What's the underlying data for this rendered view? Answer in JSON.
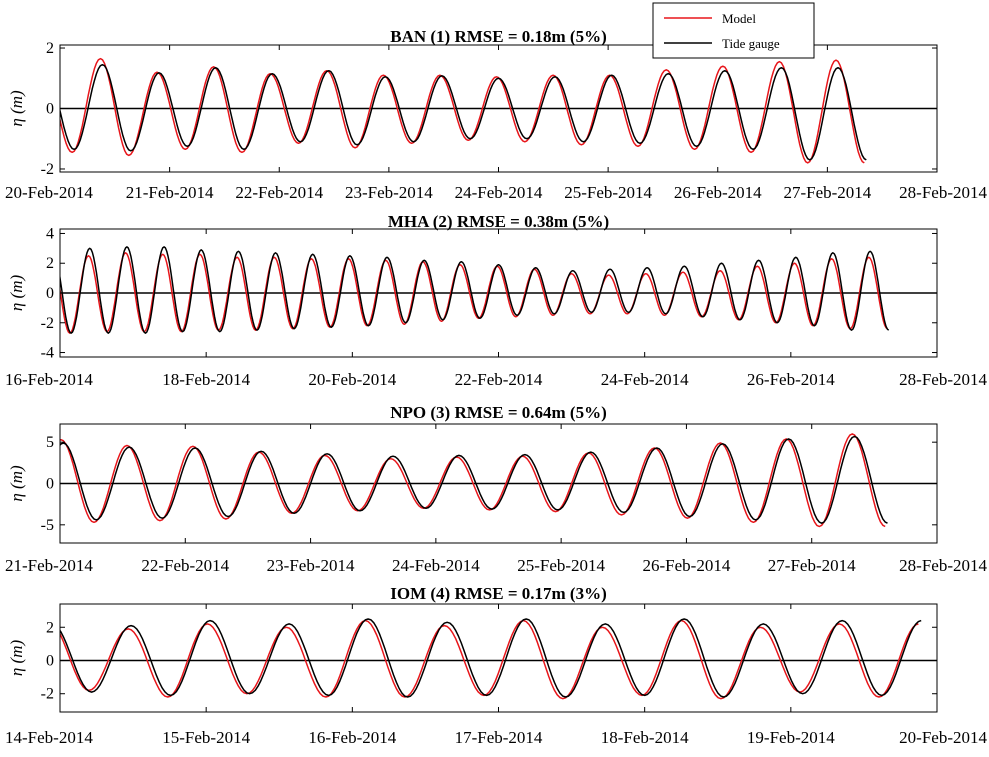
{
  "legend": {
    "position": "top-right",
    "entries": [
      {
        "label": "Model",
        "color": "#e8161b"
      },
      {
        "label": "Tide gauge",
        "color": "#000000"
      }
    ]
  },
  "chart_data": [
    {
      "type": "line",
      "title": "BAN (1) RMSE = 0.18m (5%)",
      "ylabel": "η (m)",
      "ylim": [
        -2.1,
        2.1
      ],
      "yticks": [
        -2,
        0,
        2
      ],
      "x_start": "20-Feb-2014",
      "x_end": "28-Feb-2014",
      "xticks": [
        "20-Feb-2014",
        "21-Feb-2014",
        "22-Feb-2014",
        "23-Feb-2014",
        "24-Feb-2014",
        "25-Feb-2014",
        "26-Feb-2014",
        "27-Feb-2014",
        "28-Feb-2014"
      ],
      "zero_line": true,
      "series": [
        {
          "name": "Model",
          "color": "#e8161b",
          "highs": [
            1.3,
            1.65,
            1.2,
            1.38,
            1.15,
            1.25,
            1.1,
            1.1,
            1.05,
            1.1,
            1.1,
            1.28,
            1.4,
            1.55,
            1.6
          ],
          "lows": [
            -1.45,
            -1.55,
            -1.35,
            -1.45,
            -1.15,
            -1.3,
            -1.15,
            -1.05,
            -1.1,
            -1.2,
            -1.25,
            -1.35,
            -1.45,
            -1.8
          ]
        },
        {
          "name": "Tide gauge",
          "color": "#000000",
          "highs": [
            1.2,
            1.45,
            1.18,
            1.35,
            1.15,
            1.25,
            1.05,
            1.08,
            1.0,
            1.05,
            1.1,
            1.15,
            1.25,
            1.35,
            1.35
          ],
          "lows": [
            -1.35,
            -1.4,
            -1.25,
            -1.35,
            -1.1,
            -1.2,
            -1.1,
            -1.0,
            -1.0,
            -1.1,
            -1.15,
            -1.25,
            -1.35,
            -1.7
          ]
        }
      ]
    },
    {
      "type": "line",
      "title": "MHA (2) RMSE = 0.38m (5%)",
      "ylabel": "η (m)",
      "ylim": [
        -4.3,
        4.3
      ],
      "yticks": [
        -4,
        -2,
        0,
        2,
        4
      ],
      "x_start": "16-Feb-2014",
      "x_end": "28-Feb-2014",
      "xticks": [
        "16-Feb-2014",
        "18-Feb-2014",
        "20-Feb-2014",
        "22-Feb-2014",
        "24-Feb-2014",
        "26-Feb-2014",
        "28-Feb-2014"
      ],
      "zero_line": true,
      "series": [
        {
          "name": "Model",
          "color": "#e8161b",
          "highs": [
            2.6,
            2.5,
            2.7,
            2.6,
            2.6,
            2.4,
            2.4,
            2.3,
            2.3,
            2.2,
            2.1,
            1.9,
            1.8,
            1.6,
            1.3,
            1.2,
            1.3,
            1.4,
            1.5,
            1.8,
            2.0,
            2.3,
            2.4
          ],
          "lows": [
            -2.7,
            -2.6,
            -2.6,
            -2.6,
            -2.5,
            -2.5,
            -2.4,
            -2.3,
            -2.2,
            -2.1,
            -1.9,
            -1.7,
            -1.6,
            -1.5,
            -1.4,
            -1.4,
            -1.5,
            -1.6,
            -1.8,
            -2.0,
            -2.2,
            -2.4
          ]
        },
        {
          "name": "Tide gauge",
          "color": "#000000",
          "highs": [
            3.0,
            3.0,
            3.1,
            3.1,
            2.9,
            2.8,
            2.7,
            2.6,
            2.5,
            2.4,
            2.2,
            2.1,
            1.9,
            1.7,
            1.5,
            1.6,
            1.7,
            1.8,
            2.0,
            2.2,
            2.4,
            2.7,
            2.8
          ],
          "lows": [
            -2.7,
            -2.7,
            -2.7,
            -2.6,
            -2.6,
            -2.5,
            -2.4,
            -2.3,
            -2.2,
            -2.0,
            -1.8,
            -1.7,
            -1.5,
            -1.4,
            -1.3,
            -1.3,
            -1.4,
            -1.6,
            -1.8,
            -2.0,
            -2.2,
            -2.5
          ]
        }
      ]
    },
    {
      "type": "line",
      "title": "NPO (3) RMSE = 0.64m (5%)",
      "ylabel": "η (m)",
      "ylim": [
        -7.2,
        7.2
      ],
      "yticks": [
        -5,
        0,
        5
      ],
      "x_start": "21-Feb-2014",
      "x_end": "28-Feb-2014",
      "xticks": [
        "21-Feb-2014",
        "22-Feb-2014",
        "23-Feb-2014",
        "24-Feb-2014",
        "25-Feb-2014",
        "26-Feb-2014",
        "27-Feb-2014",
        "28-Feb-2014"
      ],
      "zero_line": true,
      "series": [
        {
          "name": "Model",
          "color": "#e8161b",
          "highs": [
            5.3,
            4.6,
            4.5,
            3.8,
            3.4,
            3.0,
            3.2,
            3.3,
            3.7,
            4.3,
            4.9,
            5.4,
            6.0
          ],
          "lows": [
            -4.7,
            -4.5,
            -4.3,
            -3.6,
            -3.3,
            -3.0,
            -3.2,
            -3.4,
            -3.8,
            -4.2,
            -4.7,
            -5.2
          ]
        },
        {
          "name": "Tide gauge",
          "color": "#000000",
          "highs": [
            4.9,
            4.4,
            4.3,
            3.9,
            3.6,
            3.3,
            3.4,
            3.5,
            3.8,
            4.3,
            4.8,
            5.4,
            5.7
          ],
          "lows": [
            -4.4,
            -4.2,
            -4.0,
            -3.6,
            -3.3,
            -3.0,
            -3.1,
            -3.2,
            -3.5,
            -4.0,
            -4.4,
            -4.8
          ]
        }
      ]
    },
    {
      "type": "line",
      "title": "IOM (4) RMSE = 0.17m (3%)",
      "ylabel": "η (m)",
      "ylim": [
        -3.1,
        3.4
      ],
      "yticks": [
        -2,
        0,
        2
      ],
      "x_start": "14-Feb-2014",
      "x_end": "20-Feb-2014",
      "xticks": [
        "14-Feb-2014",
        "15-Feb-2014",
        "16-Feb-2014",
        "17-Feb-2014",
        "18-Feb-2014",
        "19-Feb-2014",
        "20-Feb-2014"
      ],
      "zero_line": true,
      "series": [
        {
          "name": "Model",
          "color": "#e8161b",
          "highs": [
            2.3,
            1.9,
            2.2,
            2.0,
            2.4,
            2.1,
            2.4,
            2.0,
            2.4,
            2.0,
            2.2
          ],
          "lows": [
            -1.8,
            -2.2,
            -2.0,
            -2.2,
            -2.2,
            -2.1,
            -2.3,
            -2.1,
            -2.3,
            -1.9,
            -2.2
          ]
        },
        {
          "name": "Tide gauge",
          "color": "#000000",
          "highs": [
            2.2,
            2.1,
            2.4,
            2.2,
            2.5,
            2.3,
            2.5,
            2.2,
            2.5,
            2.2,
            2.4
          ],
          "lows": [
            -1.9,
            -2.1,
            -2.0,
            -2.1,
            -2.2,
            -2.1,
            -2.2,
            -2.1,
            -2.2,
            -2.0,
            -2.1
          ]
        }
      ]
    }
  ]
}
